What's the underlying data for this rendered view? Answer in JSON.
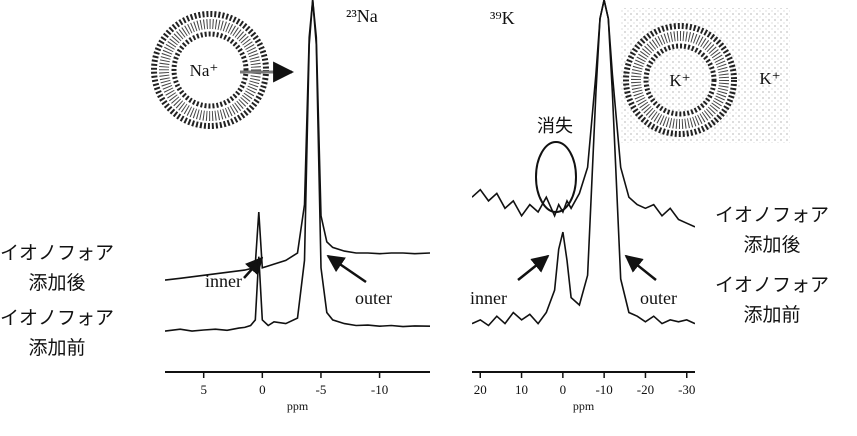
{
  "chart_data": [
    {
      "type": "line",
      "title": "²³Na",
      "x_label": "ppm",
      "ion_labels": [
        "Na⁺"
      ],
      "annotations": [
        "inner",
        "outer"
      ],
      "xlim": [
        8.3,
        -14.3
      ],
      "xticks": [
        5,
        0,
        -5,
        -10
      ],
      "ylim": [
        0,
        100
      ],
      "x": [
        8.3,
        7,
        6,
        5,
        4,
        3,
        2,
        1.5,
        1,
        0.6,
        0.3,
        0,
        -0.5,
        -1,
        -2,
        -3,
        -3.6,
        -4.0,
        -4.3,
        -4.6,
        -5,
        -5.5,
        -6,
        -7,
        -8,
        -9,
        -10,
        -11,
        -12,
        -13,
        -14.3
      ],
      "series": [
        {
          "name": "イオノフォア\n添加後",
          "color": "#111111",
          "values": [
            24.7,
            25.2,
            25.6,
            26,
            26.4,
            26.8,
            27.2,
            27.4,
            27.8,
            29,
            43,
            28,
            28.5,
            29,
            30,
            32,
            45,
            90,
            100,
            90,
            42,
            35,
            33.5,
            32.5,
            32,
            32,
            31.8,
            32,
            32,
            31.8,
            32
          ]
        },
        {
          "name": "イオノフォア\n添加前",
          "color": "#111111",
          "values": [
            11,
            11.5,
            11,
            11.3,
            11.5,
            11.2,
            11.8,
            12,
            12.5,
            14,
            31,
            14,
            12.5,
            13.5,
            13,
            14.5,
            30,
            88,
            100,
            88,
            28,
            16,
            14,
            13,
            12.5,
            12.6,
            12.3,
            12.5,
            12.2,
            12.4,
            12.3
          ]
        }
      ]
    },
    {
      "type": "line",
      "title": "³⁹K",
      "x_label": "ppm",
      "ion_labels": [
        "K⁺",
        "K⁺"
      ],
      "annotations": [
        "inner",
        "outer",
        "消失"
      ],
      "xlim": [
        22,
        -32
      ],
      "xticks": [
        20,
        10,
        0,
        -10,
        -20,
        -30
      ],
      "ylim": [
        0,
        100
      ],
      "x": [
        22,
        20,
        18,
        16,
        14,
        12,
        10,
        8,
        6,
        4,
        2,
        1,
        0,
        -1,
        -2,
        -4,
        -6,
        -8,
        -9,
        -10,
        -11,
        -12,
        -14,
        -16,
        -18,
        -20,
        -22,
        -24,
        -26,
        -28,
        -30,
        -32
      ],
      "series": [
        {
          "name": "イオノフォア\n添加後",
          "color": "#111111",
          "values": [
            47,
            49,
            46,
            48,
            44,
            46,
            42,
            45,
            43,
            47,
            42,
            45,
            43,
            46,
            44,
            48,
            55,
            80,
            95,
            100,
            95,
            80,
            55,
            47,
            45,
            44,
            45,
            42,
            44,
            41,
            40,
            39
          ]
        },
        {
          "name": "イオノフォア\n添加前",
          "color": "#111111",
          "values": [
            13,
            14,
            12.5,
            15,
            13,
            16,
            14,
            15.5,
            13,
            16,
            22,
            33,
            37.6,
            30,
            20,
            18,
            26,
            75,
            95,
            100,
            95,
            75,
            25,
            16,
            15,
            13.5,
            15,
            13,
            14,
            13.5,
            14,
            13
          ]
        }
      ]
    }
  ]
}
